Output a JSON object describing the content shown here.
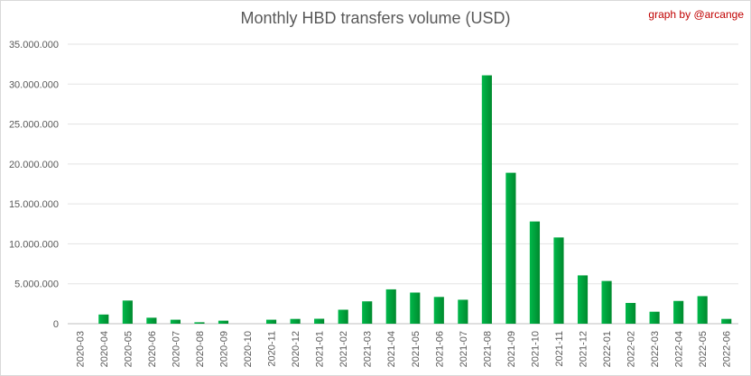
{
  "chart_data": {
    "type": "bar",
    "title": "Monthly HBD transfers volume (USD)",
    "credit": "graph by @arcange",
    "xlabel": "",
    "ylabel": "",
    "ylim": [
      0,
      35000000
    ],
    "y_ticks": [
      {
        "value": 0,
        "label": "0"
      },
      {
        "value": 5000000,
        "label": "5.000.000"
      },
      {
        "value": 10000000,
        "label": "10.000.000"
      },
      {
        "value": 15000000,
        "label": "15.000.000"
      },
      {
        "value": 20000000,
        "label": "20.000.000"
      },
      {
        "value": 25000000,
        "label": "25.000.000"
      },
      {
        "value": 30000000,
        "label": "30.000.000"
      },
      {
        "value": 35000000,
        "label": "35.000.000"
      }
    ],
    "grid": true,
    "legend": "none",
    "bar_color": "#00a03a",
    "categories": [
      "2020-03",
      "2020-04",
      "2020-05",
      "2020-06",
      "2020-07",
      "2020-08",
      "2020-09",
      "2020-10",
      "2020-11",
      "2020-12",
      "2021-01",
      "2021-02",
      "2021-03",
      "2021-04",
      "2021-05",
      "2021-06",
      "2021-07",
      "2021-08",
      "2021-09",
      "2021-10",
      "2021-11",
      "2021-12",
      "2022-01",
      "2022-02",
      "2022-03",
      "2022-04",
      "2022-05",
      "2022-06"
    ],
    "values": [
      0,
      1150000,
      2900000,
      750000,
      500000,
      180000,
      380000,
      0,
      500000,
      600000,
      620000,
      1750000,
      2800000,
      4300000,
      3900000,
      3350000,
      3000000,
      31100000,
      18900000,
      12800000,
      10800000,
      6050000,
      5350000,
      2600000,
      1500000,
      2850000,
      3450000,
      600000
    ]
  }
}
